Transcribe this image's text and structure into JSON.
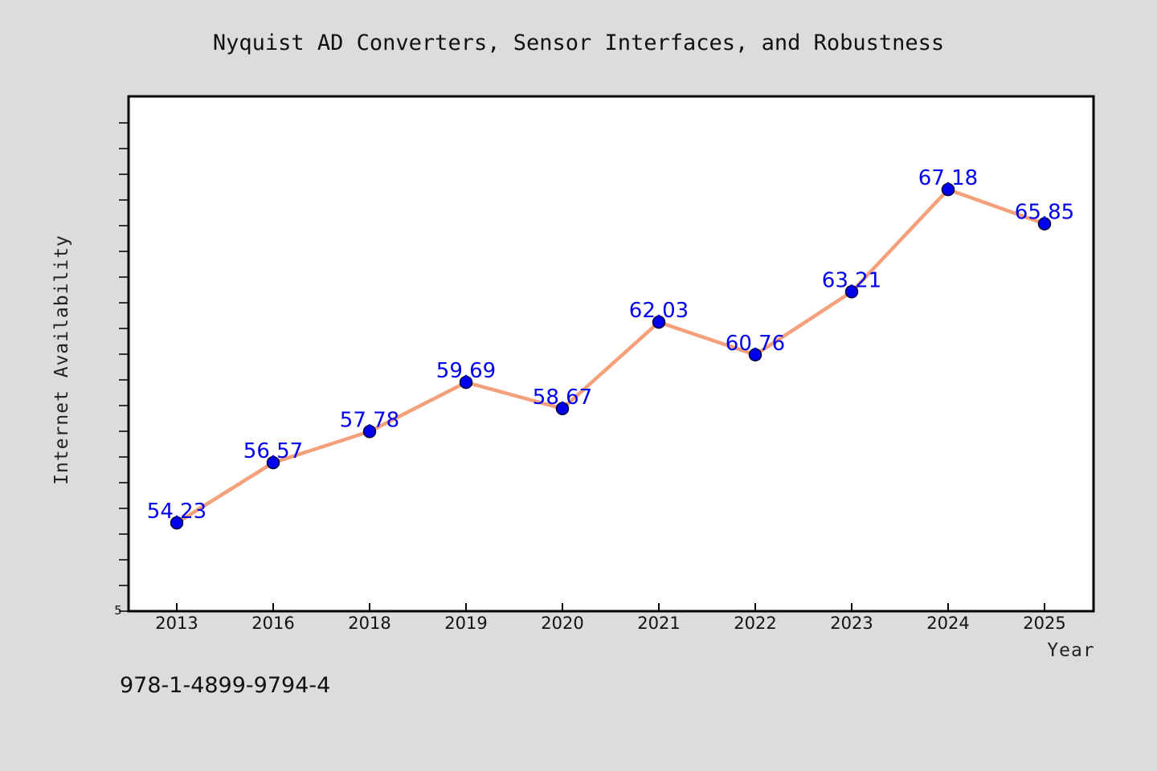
{
  "chart_data": {
    "type": "line",
    "title": "Nyquist AD Converters, Sensor Interfaces, and Robustness",
    "xlabel": "Year",
    "ylabel": "Internet Availability",
    "categories": [
      "2013",
      "2016",
      "2018",
      "2019",
      "2020",
      "2021",
      "2022",
      "2023",
      "2024",
      "2025"
    ],
    "series": [
      {
        "values": [
          54.23,
          56.57,
          57.78,
          59.69,
          58.67,
          62.03,
          60.76,
          63.21,
          67.18,
          65.85
        ]
      }
    ],
    "data_labels": [
      "54.23",
      "56.57",
      "57.78",
      "59.69",
      "58.67",
      "62.03",
      "60.76",
      "63.21",
      "67.18",
      "65.85"
    ],
    "y_tick_label": "5",
    "ylim": [
      50.8,
      70.8
    ],
    "grid": false,
    "legend": "none",
    "colors": {
      "line": "#f4a07a",
      "marker": "#0000ee",
      "marker_stroke": "#000033",
      "data_label": "#0000ee",
      "background": "#dcdcdc",
      "plot_background": "#ffffff"
    }
  },
  "footer": {
    "isbn": "978-1-4899-9794-4"
  }
}
